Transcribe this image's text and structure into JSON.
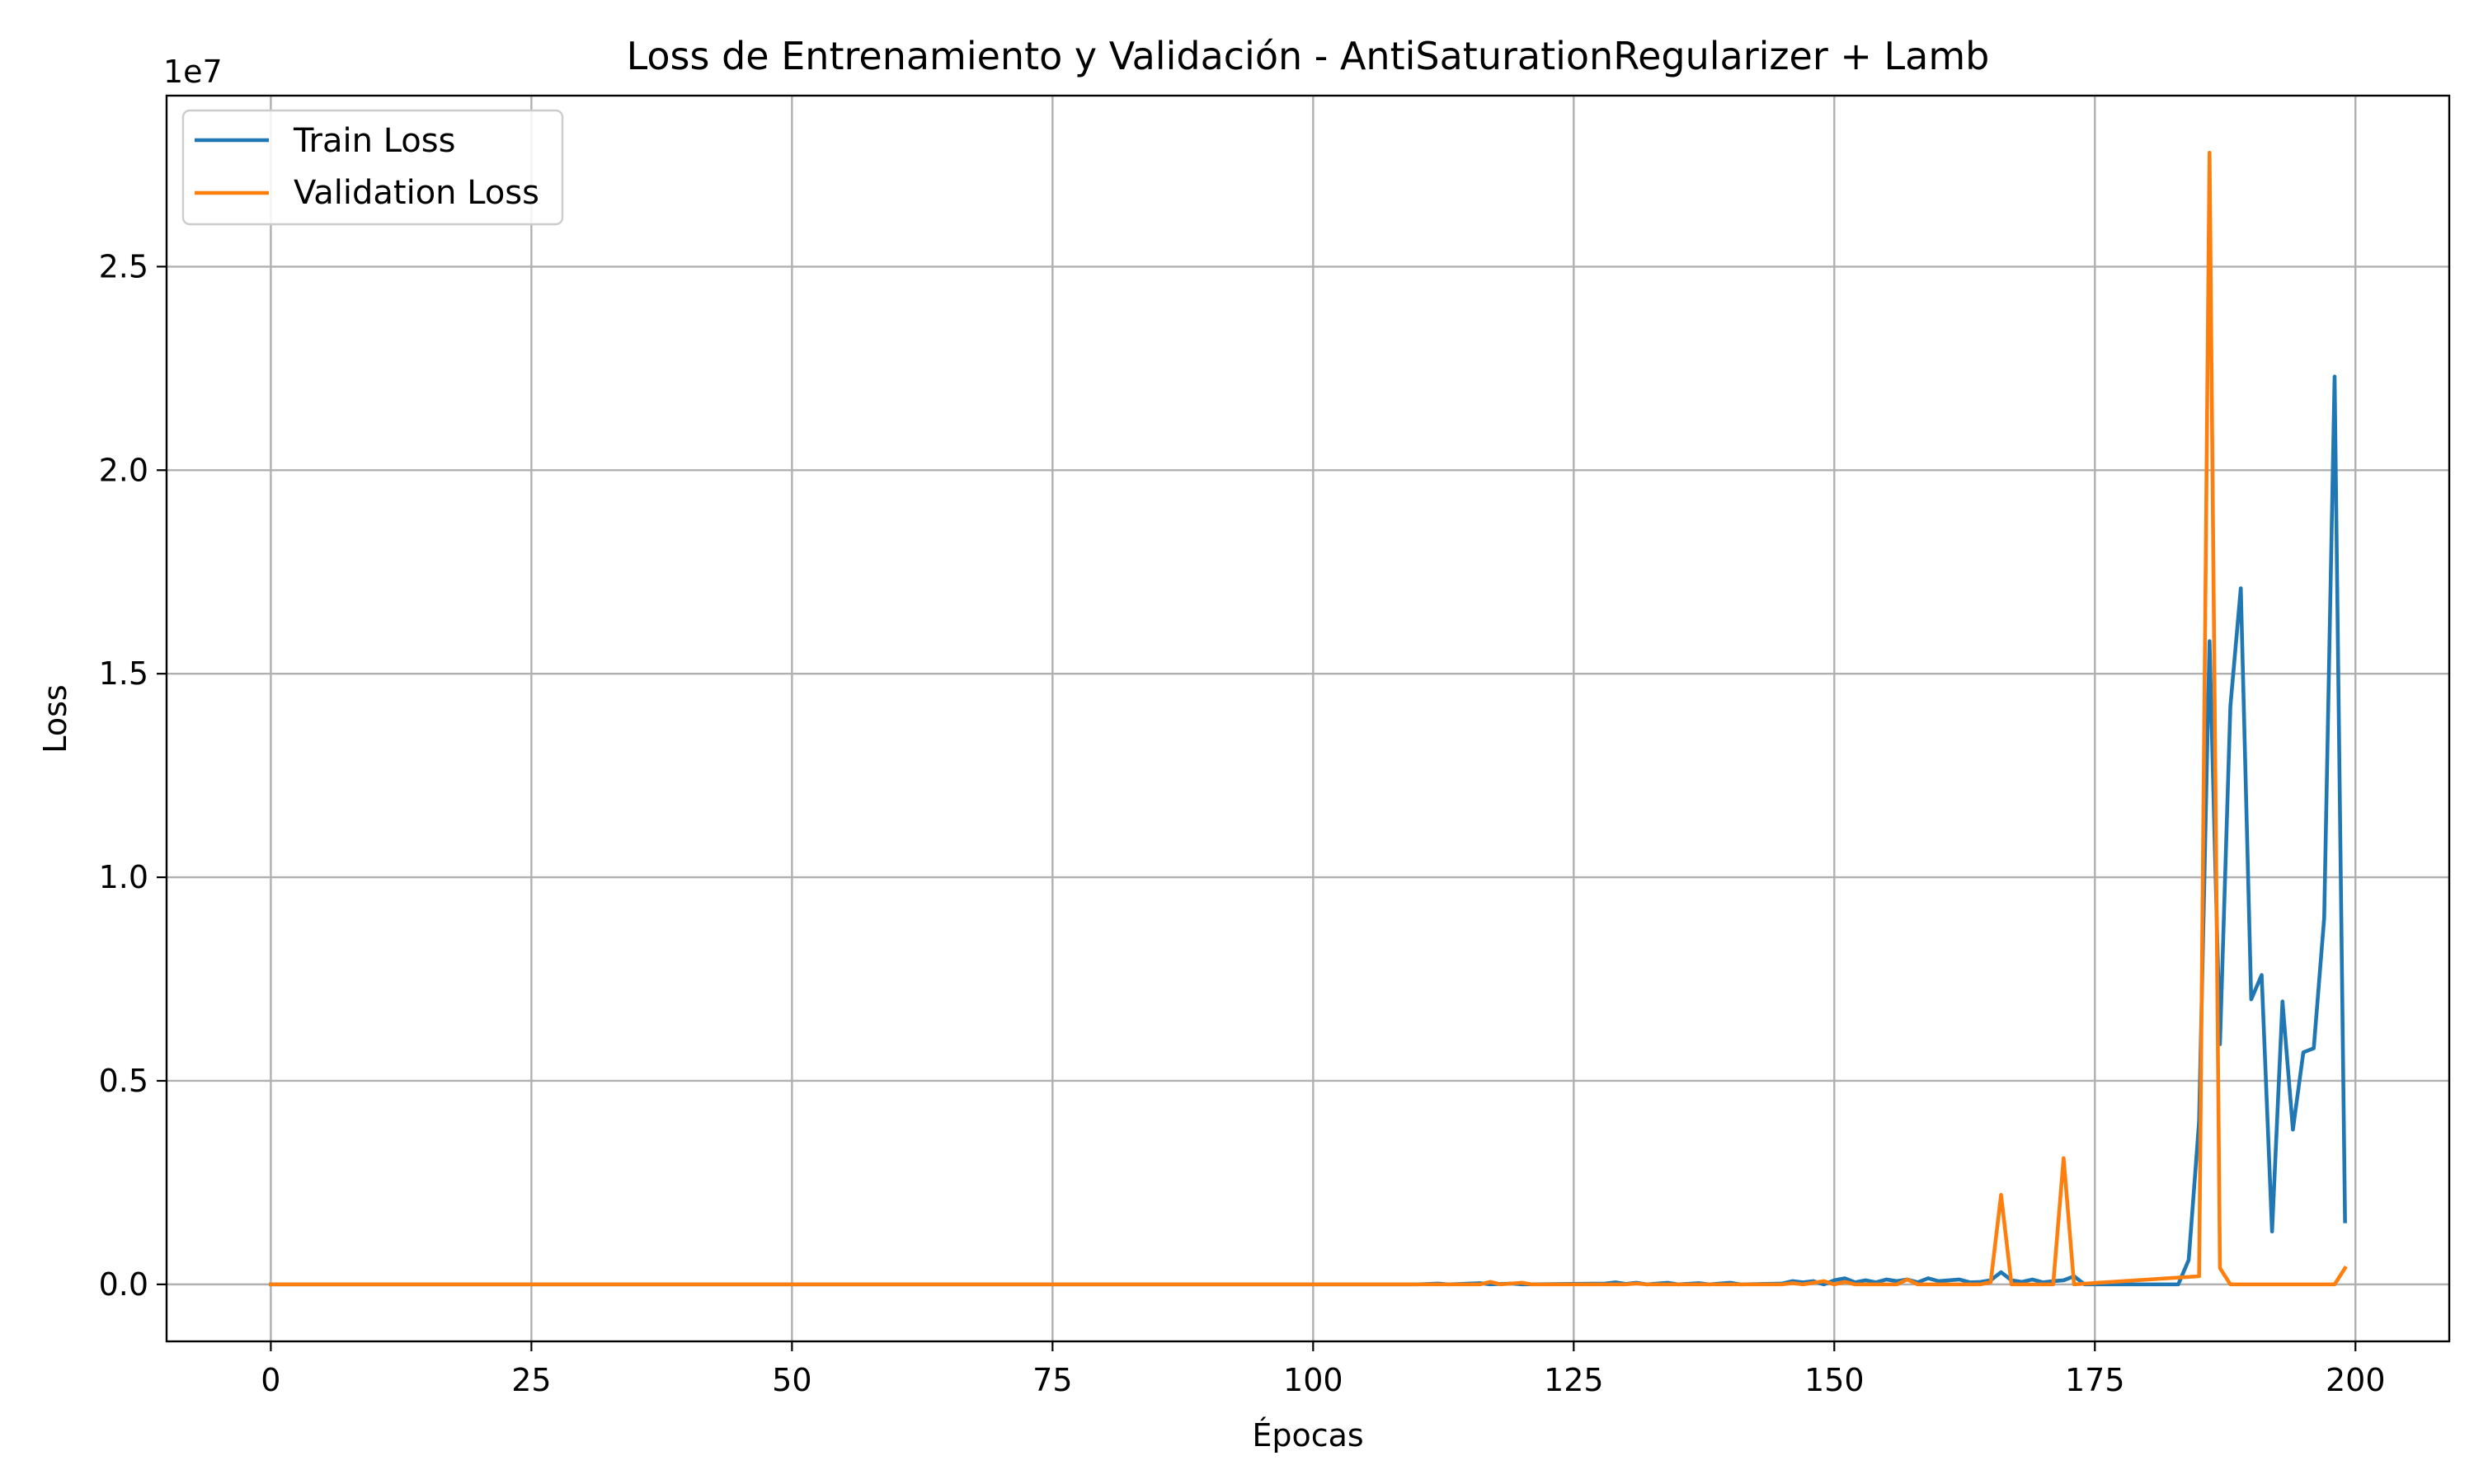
{
  "chart_data": {
    "type": "line",
    "title": "Loss de Entrenamiento y Validación - AntiSaturationRegularizer + Lamb",
    "xlabel": "Épocas",
    "ylabel": "Loss",
    "y_offset_label": "1e7",
    "xlim": [
      -10,
      209
    ],
    "ylim": [
      -1400000,
      29200000
    ],
    "xticks": [
      0,
      25,
      50,
      75,
      100,
      125,
      150,
      175,
      200
    ],
    "xtick_labels": [
      "0",
      "25",
      "50",
      "75",
      "100",
      "125",
      "150",
      "175",
      "200"
    ],
    "yticks": [
      0,
      5000000,
      10000000,
      15000000,
      20000000,
      25000000
    ],
    "ytick_labels": [
      "0.0",
      "0.5",
      "1.0",
      "1.5",
      "2.0",
      "2.5"
    ],
    "grid": true,
    "legend_position": "upper-left",
    "series": [
      {
        "name": "Train Loss",
        "color": "#1f77b4",
        "points": [
          [
            0,
            0
          ],
          [
            110,
            0
          ],
          [
            112,
            20000
          ],
          [
            113,
            0
          ],
          [
            116,
            30000
          ],
          [
            117,
            0
          ],
          [
            119,
            20000
          ],
          [
            120,
            0
          ],
          [
            128,
            20000
          ],
          [
            129,
            50000
          ],
          [
            130,
            10000
          ],
          [
            131,
            40000
          ],
          [
            132,
            0
          ],
          [
            134,
            40000
          ],
          [
            135,
            0
          ],
          [
            137,
            30000
          ],
          [
            138,
            0
          ],
          [
            140,
            40000
          ],
          [
            141,
            0
          ],
          [
            145,
            20000
          ],
          [
            146,
            80000
          ],
          [
            147,
            50000
          ],
          [
            148,
            80000
          ],
          [
            149,
            0
          ],
          [
            150,
            100000
          ],
          [
            151,
            150000
          ],
          [
            152,
            50000
          ],
          [
            153,
            100000
          ],
          [
            154,
            50000
          ],
          [
            155,
            120000
          ],
          [
            156,
            80000
          ],
          [
            157,
            120000
          ],
          [
            158,
            50000
          ],
          [
            159,
            150000
          ],
          [
            160,
            80000
          ],
          [
            161,
            100000
          ],
          [
            162,
            120000
          ],
          [
            163,
            50000
          ],
          [
            164,
            60000
          ],
          [
            165,
            100000
          ],
          [
            166,
            300000
          ],
          [
            167,
            100000
          ],
          [
            168,
            60000
          ],
          [
            169,
            120000
          ],
          [
            170,
            50000
          ],
          [
            171,
            80000
          ],
          [
            172,
            100000
          ],
          [
            173,
            200000
          ],
          [
            174,
            0
          ],
          [
            183,
            0
          ],
          [
            184,
            600000
          ],
          [
            185,
            4000000
          ],
          [
            186,
            15800000
          ],
          [
            187,
            5900000
          ],
          [
            188,
            14200000
          ],
          [
            189,
            17100000
          ],
          [
            190,
            7000000
          ],
          [
            191,
            7600000
          ],
          [
            192,
            1300000
          ],
          [
            193,
            6950000
          ],
          [
            194,
            3800000
          ],
          [
            195,
            5700000
          ],
          [
            196,
            5800000
          ],
          [
            197,
            9000000
          ],
          [
            198,
            22300000
          ],
          [
            199,
            1550000
          ]
        ]
      },
      {
        "name": "Validation Loss",
        "color": "#ff7f0e",
        "points": [
          [
            0,
            0
          ],
          [
            116,
            0
          ],
          [
            117,
            60000
          ],
          [
            118,
            0
          ],
          [
            120,
            40000
          ],
          [
            121,
            0
          ],
          [
            130,
            0
          ],
          [
            131,
            20000
          ],
          [
            132,
            0
          ],
          [
            145,
            0
          ],
          [
            146,
            30000
          ],
          [
            147,
            0
          ],
          [
            149,
            80000
          ],
          [
            150,
            0
          ],
          [
            151,
            60000
          ],
          [
            152,
            0
          ],
          [
            156,
            0
          ],
          [
            157,
            120000
          ],
          [
            158,
            0
          ],
          [
            164,
            0
          ],
          [
            165,
            50000
          ],
          [
            166,
            2200000
          ],
          [
            167,
            0
          ],
          [
            171,
            0
          ],
          [
            172,
            3100000
          ],
          [
            173,
            0
          ],
          [
            185,
            200000
          ],
          [
            186,
            27800000
          ],
          [
            187,
            400000
          ],
          [
            188,
            0
          ],
          [
            198,
            0
          ],
          [
            199,
            400000
          ]
        ]
      }
    ]
  }
}
